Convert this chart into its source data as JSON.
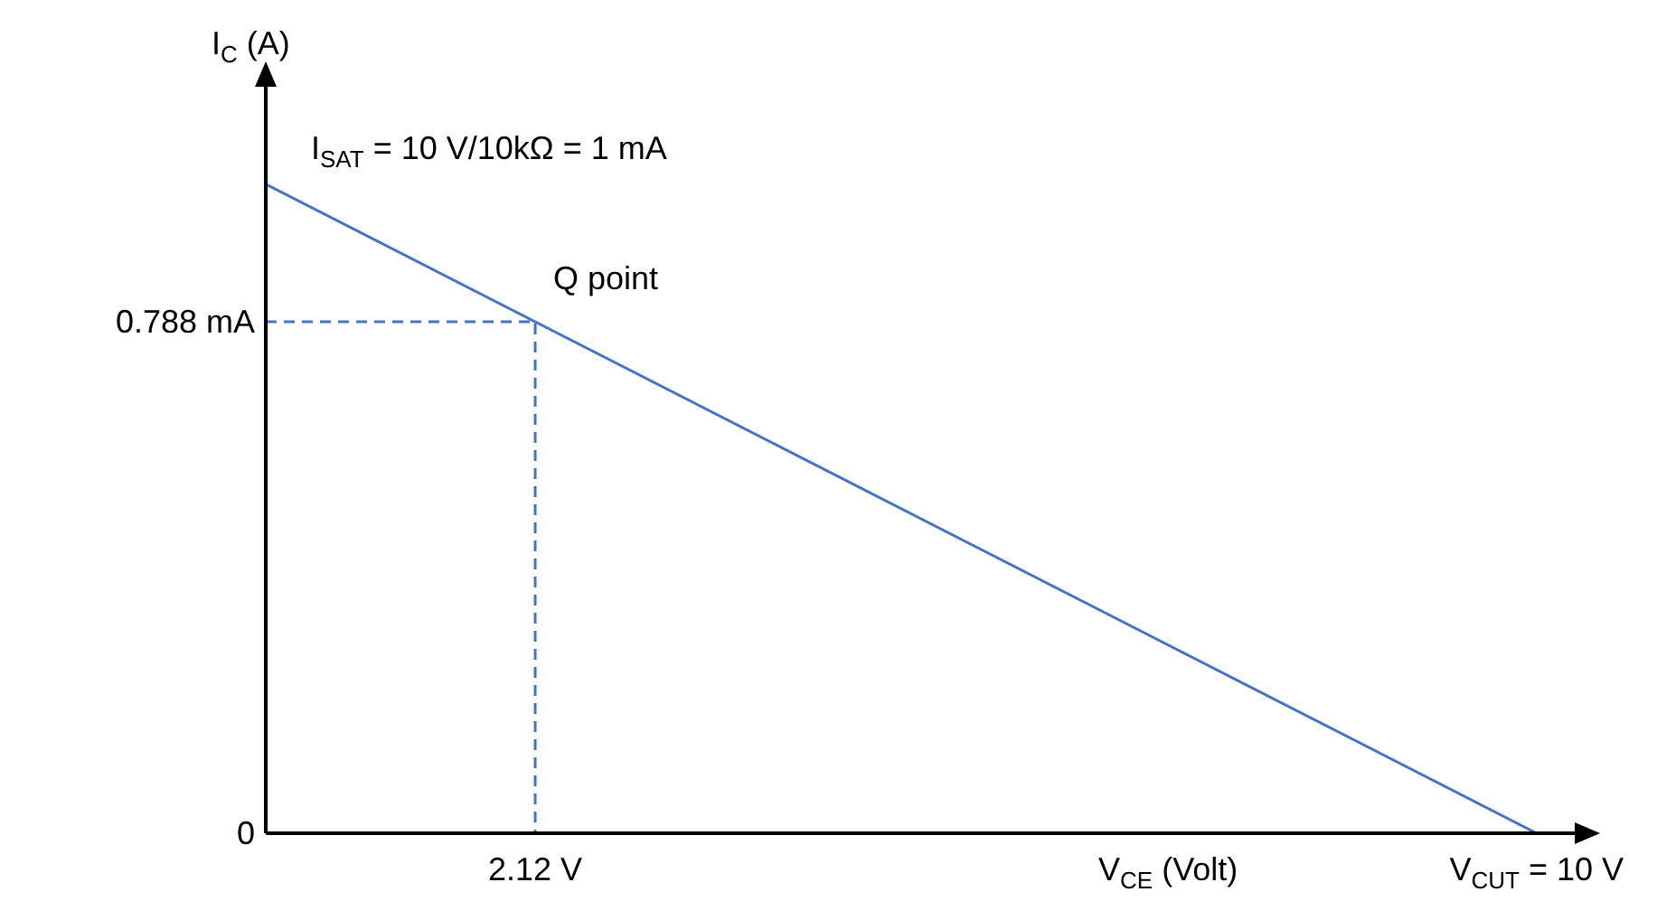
{
  "chart_data": {
    "type": "line",
    "xlabel": "V$_{CE}$ (Volt)",
    "ylabel": "I$_{C}$ (A)",
    "xlim": [
      0,
      10.3
    ],
    "ylim": [
      0,
      1.15
    ],
    "xticks": [
      {
        "value": 0,
        "label": null
      },
      {
        "value": 2.12,
        "label": "2.12 V"
      },
      {
        "value": 10,
        "label": "V$_{CUT}$ = 10 V"
      }
    ],
    "yticks": [
      {
        "value": 0,
        "label": "0"
      },
      {
        "value": 0.788,
        "label": "0.788 mA"
      }
    ],
    "series": [
      {
        "color": "#4472c4",
        "x": [
          0,
          10
        ],
        "values": [
          1,
          0
        ],
        "line_style": "solid"
      },
      {
        "color": "#4472c4",
        "x": [
          0,
          2.12,
          2.12
        ],
        "values": [
          0.788,
          0.788,
          0
        ],
        "line_style": "dashed"
      }
    ],
    "annotations": [
      {
        "text": "I$_{SAT}$ = 10 V/10kΩ = 1 mA",
        "x": 0,
        "y": 1
      },
      {
        "text": "Q point",
        "x": 2.12,
        "y": 0.788
      }
    ]
  }
}
